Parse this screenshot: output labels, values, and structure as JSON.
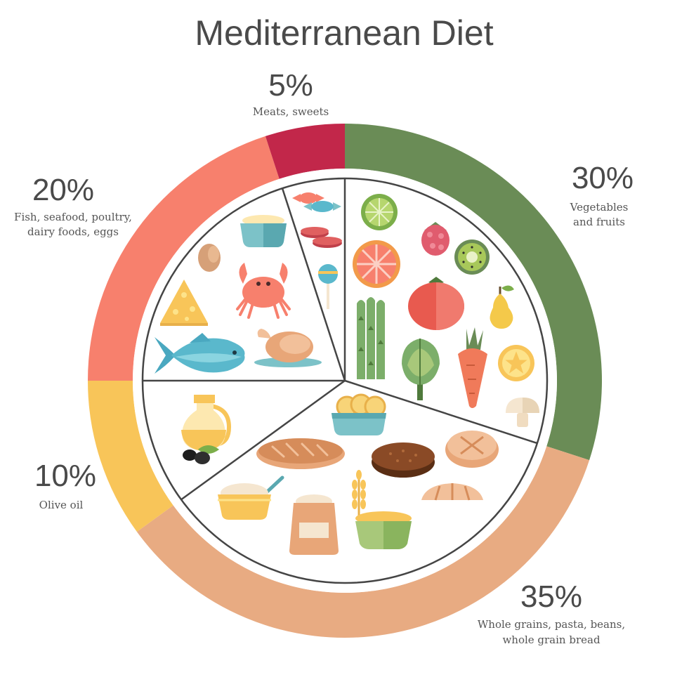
{
  "chart_data": {
    "type": "pie",
    "title": "Mediterranean Diet",
    "slices": [
      {
        "percent_label": "30%",
        "value": 30,
        "caption": [
          "Vegetables",
          "and fruits"
        ],
        "color": "#6a8c56"
      },
      {
        "percent_label": "35%",
        "value": 35,
        "caption": [
          "Whole grains, pasta, beans,",
          "whole grain bread"
        ],
        "color": "#e8ab82"
      },
      {
        "percent_label": "10%",
        "value": 10,
        "caption": [
          "Olive oil"
        ],
        "color": "#f8c559"
      },
      {
        "percent_label": "20%",
        "value": 20,
        "caption": [
          "Fish, seafood, poultry,",
          "dairy foods, eggs"
        ],
        "color": "#f7806d"
      },
      {
        "percent_label": "5%",
        "value": 5,
        "caption": [
          "Meats, sweets"
        ],
        "color": "#c2274a"
      }
    ]
  },
  "icons": {
    "vegetables": [
      "lime-icon",
      "raspberry-icon",
      "grapefruit-icon",
      "kiwi-icon",
      "tomato-icon",
      "pear-icon",
      "asparagus-icon",
      "artichoke-icon",
      "carrot-icon",
      "lemon-icon",
      "mushroom-icon"
    ],
    "grains": [
      "pasta-bowl-icon",
      "bread-loaf-icon",
      "rye-bread-icon",
      "round-bread-icon",
      "croissant-icon",
      "wheat-icon",
      "porridge-icon",
      "flour-bag-icon",
      "grain-bowl-icon"
    ],
    "olive_oil": [
      "oil-jug-icon",
      "olives-icon"
    ],
    "protein": [
      "dairy-bowl-icon",
      "egg-icon",
      "cheese-icon",
      "crab-icon",
      "fish-icon",
      "roast-chicken-icon"
    ],
    "sweets": [
      "candy-icon",
      "sausage-icon",
      "lollipop-icon"
    ]
  }
}
